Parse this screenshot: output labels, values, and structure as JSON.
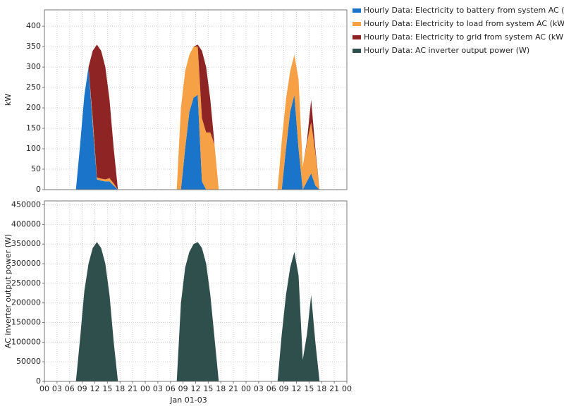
{
  "chart_data": [
    {
      "type": "area",
      "stacked": true,
      "ylabel": "kW",
      "grid": true,
      "ylim": [
        0,
        440
      ],
      "yticks": [
        0,
        50,
        100,
        150,
        200,
        250,
        300,
        350,
        400
      ],
      "xlim": [
        0,
        72
      ],
      "x": [
        0.5,
        1.5,
        2.5,
        3.5,
        4.5,
        5.5,
        6.5,
        7.5,
        8.5,
        9.5,
        10.5,
        11.5,
        12.5,
        13.5,
        14.5,
        15.5,
        16.5,
        17.5,
        18.5,
        19.5,
        20.5,
        21.5,
        22.5,
        23.5,
        24.5,
        25.5,
        26.5,
        27.5,
        28.5,
        29.5,
        30.5,
        31.5,
        32.5,
        33.5,
        34.5,
        35.5,
        36.5,
        37.5,
        38.5,
        39.5,
        40.5,
        41.5,
        42.5,
        43.5,
        44.5,
        45.5,
        46.5,
        47.5,
        48.5,
        49.5,
        50.5,
        51.5,
        52.5,
        53.5,
        54.5,
        55.5,
        56.5,
        57.5,
        58.5,
        59.5,
        60.5,
        61.5,
        62.5,
        63.5,
        64.5,
        65.5,
        66.5,
        67.5,
        68.5,
        69.5,
        70.5,
        71.5
      ],
      "series": [
        {
          "name": "Hourly Data: Electricity to battery from system AC (kW)",
          "color": "#1a74c9",
          "values": [
            0,
            0,
            0,
            0,
            0,
            0,
            0,
            0,
            110,
            230,
            300,
            160,
            25,
            22,
            20,
            20,
            10,
            0,
            0,
            0,
            0,
            0,
            0,
            0,
            0,
            0,
            0,
            0,
            0,
            0,
            0,
            0,
            0,
            100,
            190,
            225,
            232,
            20,
            0,
            0,
            0,
            0,
            0,
            0,
            0,
            0,
            0,
            0,
            0,
            0,
            0,
            0,
            0,
            0,
            0,
            0,
            0,
            100,
            190,
            232,
            100,
            0,
            20,
            40,
            10,
            0,
            0,
            0,
            0,
            0,
            0,
            0
          ]
        },
        {
          "name": "Hourly Data: Electricity to load from system AC (kW)",
          "color": "#f7a146",
          "values": [
            0,
            0,
            0,
            0,
            0,
            0,
            0,
            0,
            0,
            0,
            0,
            15,
            5,
            5,
            5,
            8,
            5,
            0,
            0,
            0,
            0,
            0,
            0,
            0,
            0,
            0,
            0,
            0,
            0,
            0,
            0,
            0,
            200,
            190,
            140,
            125,
            118,
            155,
            140,
            140,
            110,
            0,
            0,
            0,
            0,
            0,
            0,
            0,
            0,
            0,
            0,
            0,
            0,
            0,
            0,
            0,
            120,
            120,
            100,
            98,
            170,
            55,
            95,
            125,
            80,
            0,
            0,
            0,
            0,
            0,
            0,
            0
          ]
        },
        {
          "name": "Hourly Data: Electricity to grid from system AC (kW)",
          "color": "#8e2424",
          "values": [
            0,
            0,
            0,
            0,
            0,
            0,
            0,
            0,
            0,
            0,
            0,
            165,
            325,
            313,
            275,
            192,
            85,
            0,
            0,
            0,
            0,
            0,
            0,
            0,
            0,
            0,
            0,
            0,
            0,
            0,
            0,
            0,
            0,
            0,
            0,
            0,
            5,
            165,
            160,
            80,
            0,
            0,
            0,
            0,
            0,
            0,
            0,
            0,
            0,
            0,
            0,
            0,
            0,
            0,
            0,
            0,
            0,
            0,
            0,
            0,
            0,
            0,
            5,
            55,
            10,
            0,
            0,
            0,
            0,
            0,
            0,
            0
          ]
        }
      ]
    },
    {
      "type": "area",
      "ylabel": "AC inverter output power (W)",
      "xlabel": "Jan 01-03",
      "grid": true,
      "ylim": [
        0,
        460000
      ],
      "yticks": [
        0,
        50000,
        100000,
        150000,
        200000,
        250000,
        300000,
        350000,
        400000,
        450000
      ],
      "xlim": [
        0,
        72
      ],
      "xticks": [
        {
          "value": 0,
          "label": "00"
        },
        {
          "value": 3,
          "label": "03"
        },
        {
          "value": 6,
          "label": "06"
        },
        {
          "value": 9,
          "label": "09"
        },
        {
          "value": 12,
          "label": "12"
        },
        {
          "value": 15,
          "label": "15"
        },
        {
          "value": 18,
          "label": "18"
        },
        {
          "value": 21,
          "label": "21"
        },
        {
          "value": 24,
          "label": "00"
        },
        {
          "value": 27,
          "label": "03"
        },
        {
          "value": 30,
          "label": "06"
        },
        {
          "value": 33,
          "label": "09"
        },
        {
          "value": 36,
          "label": "12"
        },
        {
          "value": 39,
          "label": "15"
        },
        {
          "value": 42,
          "label": "18"
        },
        {
          "value": 45,
          "label": "21"
        },
        {
          "value": 48,
          "label": "00"
        },
        {
          "value": 51,
          "label": "03"
        },
        {
          "value": 54,
          "label": "06"
        },
        {
          "value": 57,
          "label": "09"
        },
        {
          "value": 60,
          "label": "12"
        },
        {
          "value": 63,
          "label": "15"
        },
        {
          "value": 66,
          "label": "18"
        },
        {
          "value": 69,
          "label": "21"
        },
        {
          "value": 72,
          "label": "00"
        }
      ],
      "x": [
        0.5,
        1.5,
        2.5,
        3.5,
        4.5,
        5.5,
        6.5,
        7.5,
        8.5,
        9.5,
        10.5,
        11.5,
        12.5,
        13.5,
        14.5,
        15.5,
        16.5,
        17.5,
        18.5,
        19.5,
        20.5,
        21.5,
        22.5,
        23.5,
        24.5,
        25.5,
        26.5,
        27.5,
        28.5,
        29.5,
        30.5,
        31.5,
        32.5,
        33.5,
        34.5,
        35.5,
        36.5,
        37.5,
        38.5,
        39.5,
        40.5,
        41.5,
        42.5,
        43.5,
        44.5,
        45.5,
        46.5,
        47.5,
        48.5,
        49.5,
        50.5,
        51.5,
        52.5,
        53.5,
        54.5,
        55.5,
        56.5,
        57.5,
        58.5,
        59.5,
        60.5,
        61.5,
        62.5,
        63.5,
        64.5,
        65.5,
        66.5,
        67.5,
        68.5,
        69.5,
        70.5,
        71.5
      ],
      "series": [
        {
          "name": "Hourly Data: AC inverter output power (W)",
          "color": "#2f4f4c",
          "values": [
            0,
            0,
            0,
            0,
            0,
            0,
            0,
            0,
            110000,
            230000,
            300000,
            340000,
            355000,
            340000,
            300000,
            220000,
            100000,
            0,
            0,
            0,
            0,
            0,
            0,
            0,
            0,
            0,
            0,
            0,
            0,
            0,
            0,
            0,
            200000,
            290000,
            330000,
            350000,
            355000,
            340000,
            300000,
            220000,
            110000,
            0,
            0,
            0,
            0,
            0,
            0,
            0,
            0,
            0,
            0,
            0,
            0,
            0,
            0,
            0,
            120000,
            220000,
            290000,
            330000,
            270000,
            55000,
            120000,
            220000,
            100000,
            0,
            0,
            0,
            0,
            0,
            0,
            0
          ]
        }
      ]
    }
  ]
}
